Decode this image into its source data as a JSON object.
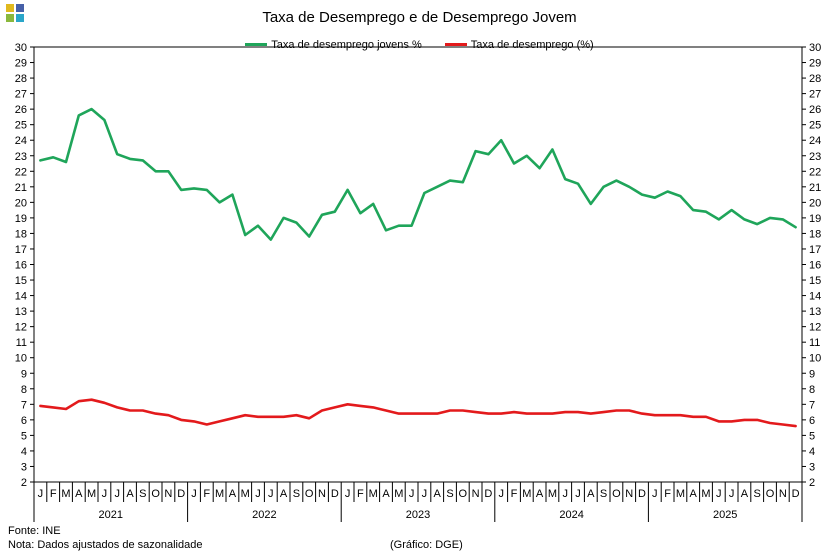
{
  "chart_data": {
    "type": "line",
    "title": "Taxa de Desemprego e de Desemprego Jovem",
    "ylim": [
      2,
      30
    ],
    "y_ticks": [
      2,
      3,
      4,
      5,
      6,
      7,
      8,
      9,
      10,
      11,
      12,
      13,
      14,
      15,
      16,
      17,
      18,
      19,
      20,
      21,
      22,
      23,
      24,
      25,
      26,
      27,
      28,
      29,
      30
    ],
    "month_labels": [
      "J",
      "F",
      "M",
      "A",
      "M",
      "J",
      "J",
      "A",
      "S",
      "O",
      "N",
      "D"
    ],
    "years": [
      "2021",
      "2022",
      "2023",
      "2024",
      "2025"
    ],
    "legend_position": "top-center",
    "series": [
      {
        "name": "Taxa de desemprego jovens %",
        "color": "#1fa55a",
        "values": [
          22.7,
          22.9,
          22.6,
          25.6,
          26.0,
          25.3,
          23.1,
          22.8,
          22.7,
          22.0,
          22.0,
          20.8,
          20.9,
          20.8,
          20.0,
          20.5,
          17.9,
          18.5,
          17.6,
          19.0,
          18.7,
          17.8,
          19.2,
          19.4,
          20.8,
          19.3,
          19.9,
          18.2,
          18.5,
          18.5,
          20.6,
          21.0,
          21.4,
          21.3,
          23.3,
          23.1,
          24.0,
          22.5,
          23.0,
          22.2,
          23.4,
          21.5,
          21.2,
          19.9,
          21.0,
          21.4,
          21.0,
          20.5,
          20.3,
          20.7,
          20.4,
          19.5,
          19.4,
          18.9,
          19.5,
          18.9,
          18.6,
          19.0,
          18.9,
          18.4
        ]
      },
      {
        "name": "Taxa de desemprego (%)",
        "color": "#e31a1c",
        "values": [
          6.9,
          6.8,
          6.7,
          7.2,
          7.3,
          7.1,
          6.8,
          6.6,
          6.6,
          6.4,
          6.3,
          6.0,
          5.9,
          5.7,
          5.9,
          6.1,
          6.3,
          6.2,
          6.2,
          6.2,
          6.3,
          6.1,
          6.6,
          6.8,
          7.0,
          6.9,
          6.8,
          6.6,
          6.4,
          6.4,
          6.4,
          6.4,
          6.6,
          6.6,
          6.5,
          6.4,
          6.4,
          6.5,
          6.4,
          6.4,
          6.4,
          6.5,
          6.5,
          6.4,
          6.5,
          6.6,
          6.6,
          6.4,
          6.3,
          6.3,
          6.3,
          6.2,
          6.2,
          5.9,
          5.9,
          6.0,
          6.0,
          5.8,
          5.7,
          5.6
        ]
      }
    ]
  },
  "footer": {
    "source": "Fonte: INE",
    "note": "Nota: Dados ajustados de sazonalidade",
    "credit": "(Gráfico: DGE)"
  }
}
